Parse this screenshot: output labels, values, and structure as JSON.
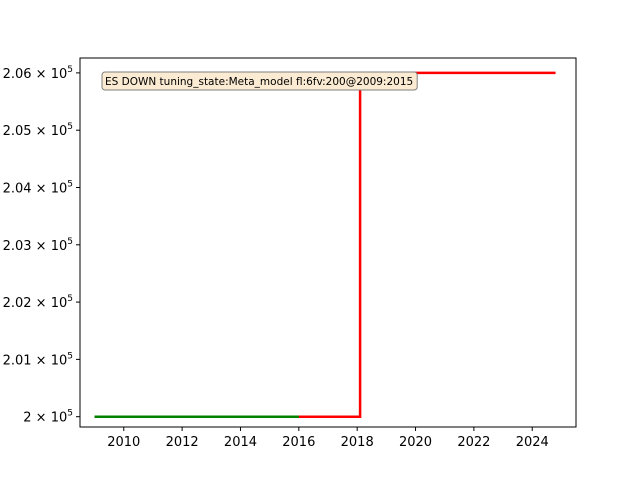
{
  "chart_data": {
    "type": "line",
    "title": "",
    "xlabel": "",
    "ylabel": "",
    "xlim": [
      2008.5,
      2025.5
    ],
    "ylim": [
      199820,
      206260
    ],
    "grid": false,
    "x_ticks": [
      2010,
      2012,
      2014,
      2016,
      2018,
      2020,
      2022,
      2024
    ],
    "x_tick_labels": [
      "2010",
      "2012",
      "2014",
      "2016",
      "2018",
      "2020",
      "2022",
      "2024"
    ],
    "y_ticks": [
      200000,
      201000,
      202000,
      203000,
      204000,
      205000,
      206000
    ],
    "y_tick_labels": [
      {
        "mantissa": "2",
        "exponent": "5"
      },
      {
        "mantissa": "2.01",
        "exponent": "5"
      },
      {
        "mantissa": "2.02",
        "exponent": "5"
      },
      {
        "mantissa": "2.03",
        "exponent": "5"
      },
      {
        "mantissa": "2.04",
        "exponent": "5"
      },
      {
        "mantissa": "2.05",
        "exponent": "5"
      },
      {
        "mantissa": "2.06",
        "exponent": "5"
      }
    ],
    "series": [
      {
        "color": "#ff0000",
        "points": [
          [
            2009.0,
            200000
          ],
          [
            2018.1,
            200000
          ],
          [
            2018.1,
            206000
          ],
          [
            2024.8,
            206000
          ]
        ]
      },
      {
        "color": "#008000",
        "points": [
          [
            2009.0,
            200000
          ],
          [
            2016.0,
            200000
          ]
        ]
      }
    ],
    "annotation": {
      "text": "ES DOWN tuning_state:Meta_model fl:6fv:200@2009:2015",
      "placement": "top-left",
      "background": "#fbebd2",
      "border": "#7f7f7f"
    }
  }
}
